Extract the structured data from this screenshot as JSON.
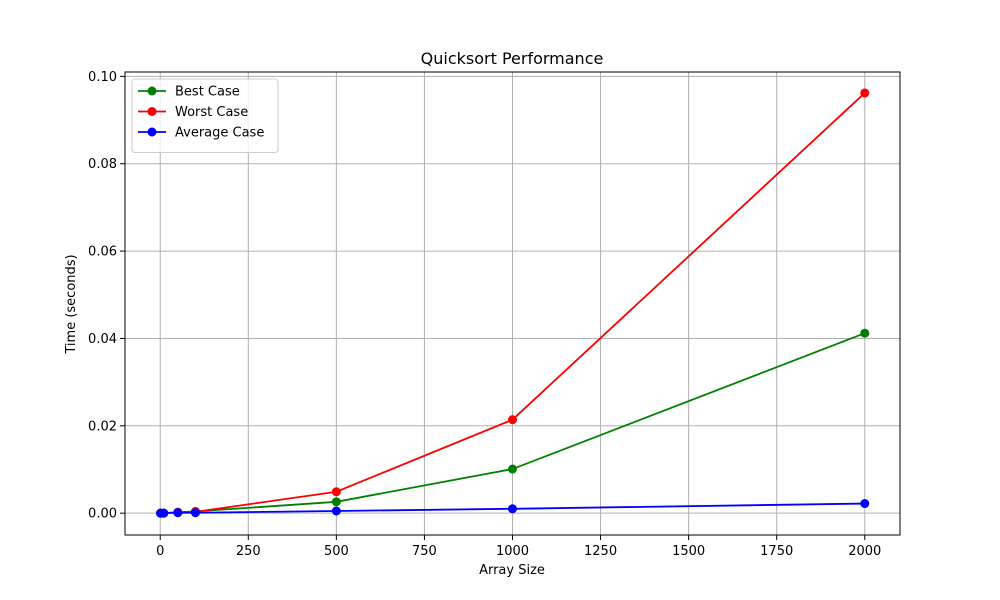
{
  "chart_data": {
    "type": "line",
    "title": "Quicksort Performance",
    "xlabel": "Array Size",
    "ylabel": "Time (seconds)",
    "x": [
      1,
      10,
      50,
      100,
      500,
      1000,
      2000
    ],
    "series": [
      {
        "name": "Best Case",
        "color": "#008000",
        "values": [
          0.0,
          0.0,
          0.0002,
          0.0004,
          0.0026,
          0.0101,
          0.0412
        ]
      },
      {
        "name": "Worst Case",
        "color": "#ff0000",
        "values": [
          0.0,
          0.0,
          0.0002,
          0.0003,
          0.0049,
          0.0214,
          0.0962
        ]
      },
      {
        "name": "Average Case",
        "color": "#0000ff",
        "values": [
          0.0,
          0.0,
          0.0001,
          0.0001,
          0.0005,
          0.001,
          0.0022
        ]
      }
    ],
    "xlim": [
      -100,
      2100
    ],
    "ylim": [
      -0.005,
      0.101
    ],
    "xticks": [
      0,
      250,
      500,
      750,
      1000,
      1250,
      1500,
      1750,
      2000
    ],
    "xtick_labels": [
      "0",
      "250",
      "500",
      "750",
      "1000",
      "1250",
      "1500",
      "1750",
      "2000"
    ],
    "yticks": [
      0.0,
      0.02,
      0.04,
      0.06,
      0.08,
      0.1
    ],
    "ytick_labels": [
      "0.00",
      "0.02",
      "0.04",
      "0.06",
      "0.08",
      "0.10"
    ],
    "grid": true,
    "legend_position": "upper-left"
  }
}
